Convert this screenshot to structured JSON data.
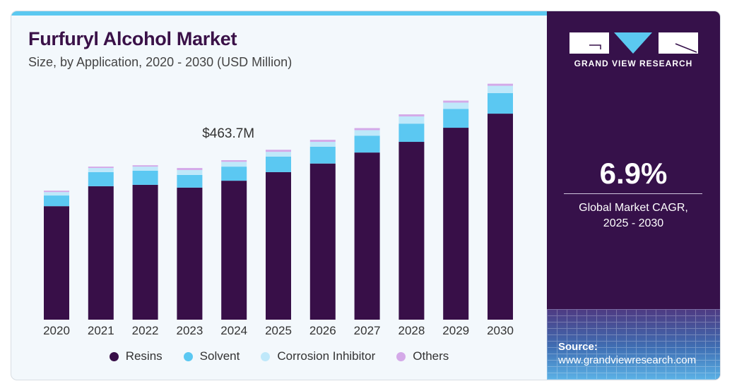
{
  "header": {
    "title": "Furfuryl Alcohol Market",
    "subtitle": "Size, by Application, 2020 - 2030 (USD Million)"
  },
  "annotation": {
    "label": "$463.7M",
    "year": "2024"
  },
  "sidebar": {
    "brand": "GRAND VIEW RESEARCH",
    "cagr_value": "6.9%",
    "cagr_label_line1": "Global Market CAGR,",
    "cagr_label_line2": "2025 - 2030",
    "source_label": "Source:",
    "source_url": "www.grandviewresearch.com"
  },
  "colors": {
    "Resins": "#380f48",
    "Solvent": "#5bc8f2",
    "Corrosion Inhibitor": "#bfe8fa",
    "Others": "#d4a9e8",
    "accent": "#5bc8f0",
    "panel": "#36114a"
  },
  "chart_data": {
    "type": "bar",
    "stacked": true,
    "title": "Furfuryl Alcohol Market",
    "subtitle": "Size, by Application, 2020 - 2030 (USD Million)",
    "xlabel": "",
    "ylabel": "USD Million",
    "categories": [
      "2020",
      "2021",
      "2022",
      "2023",
      "2024",
      "2025",
      "2026",
      "2027",
      "2028",
      "2029",
      "2030"
    ],
    "series": [
      {
        "name": "Resins",
        "values": [
          330,
          388,
          392,
          384,
          404,
          429,
          454,
          486,
          517,
          558,
          599
        ]
      },
      {
        "name": "Solvent",
        "values": [
          31,
          41,
          41,
          37,
          41,
          45,
          49,
          49,
          53,
          55,
          60
        ]
      },
      {
        "name": "Corrosion Inhibitor",
        "values": [
          10,
          12,
          12,
          14,
          14,
          14,
          14,
          16,
          21,
          18,
          21
        ]
      },
      {
        "name": "Others",
        "values": [
          4,
          4,
          4,
          6,
          4.7,
          6,
          6,
          6,
          6,
          6,
          6
        ]
      }
    ],
    "annotations": [
      {
        "category": "2024",
        "text": "$463.7M"
      }
    ],
    "ylim": [
      0,
      700
    ],
    "grid": false,
    "legend": "bottom"
  }
}
